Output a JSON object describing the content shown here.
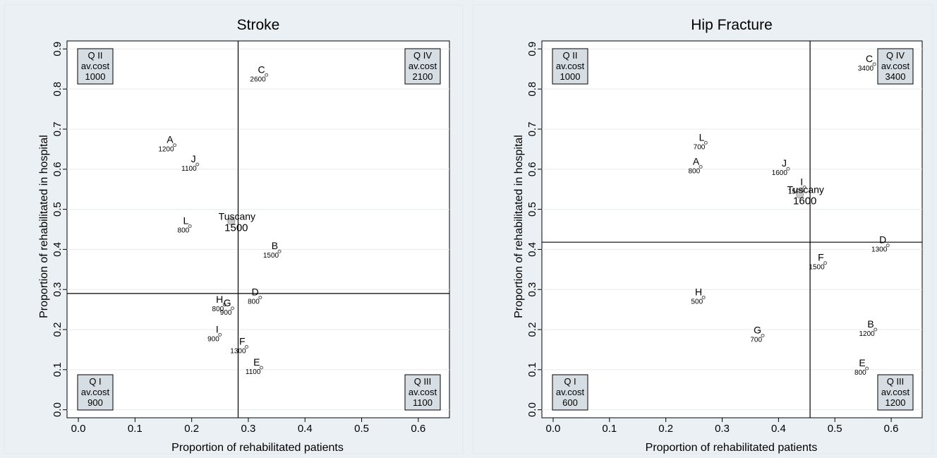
{
  "chart_data": [
    {
      "type": "scatter",
      "title": "Stroke",
      "xlabel": "Proportion of rehabilitated patients",
      "ylabel": "Proportion of rehabilitated in hospital",
      "xlim": [
        -0.02,
        0.655
      ],
      "ylim": [
        -0.02,
        0.92
      ],
      "xticks": [
        "0.0",
        "0.1",
        "0.2",
        "0.3",
        "0.4",
        "0.5",
        "0.6"
      ],
      "yticks": [
        "0.0",
        "0.1",
        "0.2",
        "0.3",
        "0.4",
        "0.5",
        "0.6",
        "0.7",
        "0.8",
        "0.9"
      ],
      "grid": true,
      "vline": 0.282,
      "hline": 0.29,
      "quadrants": [
        {
          "pos": "top-left",
          "name": "Q II",
          "label": "av.cost",
          "value": "1000"
        },
        {
          "pos": "top-right",
          "name": "Q IV",
          "label": "av.cost",
          "value": "2100"
        },
        {
          "pos": "bottom-left",
          "name": "Q I",
          "label": "av.cost",
          "value": "900"
        },
        {
          "pos": "bottom-right",
          "name": "Q III",
          "label": "av.cost",
          "value": "1100"
        }
      ],
      "points": [
        {
          "label": "C",
          "cost": "2600",
          "x": 0.332,
          "y": 0.835
        },
        {
          "label": "A",
          "cost": "1200",
          "x": 0.17,
          "y": 0.66
        },
        {
          "label": "J",
          "cost": "1100",
          "x": 0.21,
          "y": 0.612
        },
        {
          "label": "L",
          "cost": "800",
          "x": 0.197,
          "y": 0.458
        },
        {
          "label": "Tuscany",
          "cost": "1500",
          "x": 0.27,
          "y": 0.47,
          "aggregate": true
        },
        {
          "label": "B",
          "cost": "1500",
          "x": 0.355,
          "y": 0.395
        },
        {
          "label": "D",
          "cost": "800",
          "x": 0.321,
          "y": 0.28
        },
        {
          "label": "H",
          "cost": "800",
          "x": 0.258,
          "y": 0.262
        },
        {
          "label": "G",
          "cost": "900",
          "x": 0.272,
          "y": 0.253
        },
        {
          "label": "I",
          "cost": "900",
          "x": 0.25,
          "y": 0.187
        },
        {
          "label": "F",
          "cost": "1300",
          "x": 0.297,
          "y": 0.157
        },
        {
          "label": "E",
          "cost": "1100",
          "x": 0.323,
          "y": 0.105
        }
      ]
    },
    {
      "type": "scatter",
      "title": "Hip Fracture",
      "xlabel": "Proportion of rehabilitated patients",
      "ylabel": "Proportion of rehabilitated in hospital",
      "xlim": [
        -0.02,
        0.655
      ],
      "ylim": [
        -0.02,
        0.92
      ],
      "xticks": [
        "0.0",
        "0.1",
        "0.2",
        "0.3",
        "0.4",
        "0.5",
        "0.6"
      ],
      "yticks": [
        "0.0",
        "0.1",
        "0.2",
        "0.3",
        "0.4",
        "0.5",
        "0.6",
        "0.7",
        "0.8",
        "0.9"
      ],
      "grid": true,
      "vline": 0.456,
      "hline": 0.418,
      "quadrants": [
        {
          "pos": "top-left",
          "name": "Q II",
          "label": "av.cost",
          "value": "1000"
        },
        {
          "pos": "top-right",
          "name": "Q IV",
          "label": "av.cost",
          "value": "3400"
        },
        {
          "pos": "bottom-left",
          "name": "Q I",
          "label": "av.cost",
          "value": "600"
        },
        {
          "pos": "bottom-right",
          "name": "Q III",
          "label": "av.cost",
          "value": "1200"
        }
      ],
      "points": [
        {
          "label": "C",
          "cost": "3400",
          "x": 0.57,
          "y": 0.862
        },
        {
          "label": "L",
          "cost": "700",
          "x": 0.271,
          "y": 0.666
        },
        {
          "label": "A",
          "cost": "800",
          "x": 0.262,
          "y": 0.606
        },
        {
          "label": "J",
          "cost": "1600",
          "x": 0.417,
          "y": 0.601
        },
        {
          "label": "I",
          "cost": "1500",
          "x": 0.446,
          "y": 0.555
        },
        {
          "label": "Tuscany",
          "cost": "1600",
          "x": 0.438,
          "y": 0.537,
          "aggregate": true
        },
        {
          "label": "D",
          "cost": "1300",
          "x": 0.594,
          "y": 0.41
        },
        {
          "label": "F",
          "cost": "1500",
          "x": 0.483,
          "y": 0.366
        },
        {
          "label": "H",
          "cost": "500",
          "x": 0.267,
          "y": 0.28
        },
        {
          "label": "G",
          "cost": "700",
          "x": 0.372,
          "y": 0.185
        },
        {
          "label": "B",
          "cost": "1200",
          "x": 0.572,
          "y": 0.2
        },
        {
          "label": "E",
          "cost": "800",
          "x": 0.557,
          "y": 0.103
        }
      ]
    }
  ]
}
